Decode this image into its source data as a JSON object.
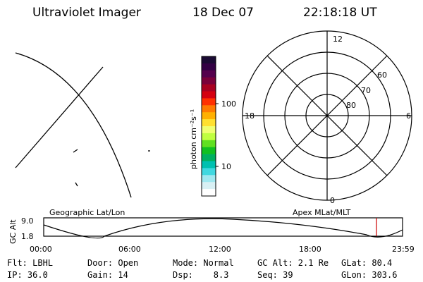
{
  "header": {
    "title": "Ultraviolet Imager",
    "date": "18 Dec 07",
    "time": "22:18:18 UT"
  },
  "colorbar": {
    "unit_label": "photon cm⁻²s⁻¹",
    "ticks": [
      "100",
      "10"
    ],
    "colors": [
      "#1a0a33",
      "#330044",
      "#55004d",
      "#7a003a",
      "#a80020",
      "#d40010",
      "#ff3000",
      "#ff7a00",
      "#ffb000",
      "#ffe030",
      "#f0ff70",
      "#c0ff40",
      "#60e020",
      "#10c020",
      "#00b060",
      "#00c0b0",
      "#40d8e0",
      "#a0e8f0",
      "#d8f0f4",
      "#ffffff"
    ]
  },
  "polar_plot": {
    "labels": {
      "top": "12",
      "bottom": "0",
      "left": "18",
      "right": "6"
    },
    "rings": [
      "60",
      "70",
      "80"
    ]
  },
  "timeline": {
    "left_label": "Geographic Lat/Lon",
    "right_label": "Apex MLat/MLT",
    "axis_label": "GC Alt",
    "y_ticks": [
      "9.0",
      "1.8"
    ],
    "x_ticks": [
      "00:00",
      "06:00",
      "12:00",
      "18:00",
      "23:59"
    ],
    "marker_color": "#cc0000"
  },
  "status": {
    "row1": [
      "Flt: LBHL",
      "Door: Open",
      "Mode: Normal",
      "GC Alt: 2.1 Re",
      "GLat: 80.4"
    ],
    "row2": [
      "IP: 36.0",
      "Gain: 14",
      "Dsp:    8.3",
      "Seq: 39",
      "GLon: 303.6"
    ]
  }
}
